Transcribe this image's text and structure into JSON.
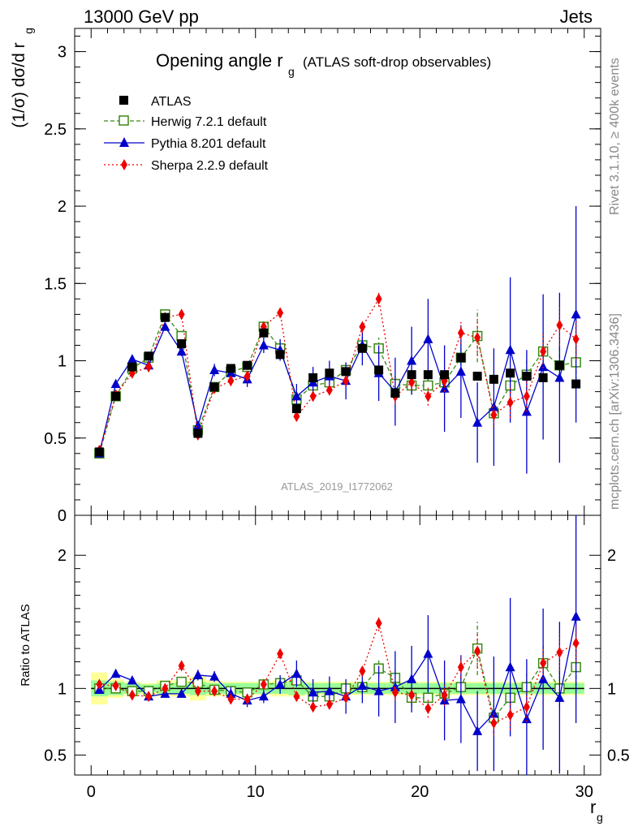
{
  "header": {
    "process": "13000 GeV pp",
    "category": "Jets"
  },
  "title": {
    "main": "Opening angle r",
    "main_sub": "g",
    "suffix": "(ATLAS soft-drop observables)"
  },
  "side_labels": {
    "rivet": "Rivet 3.1.10, ≥ 400k events",
    "mcplots": "mcplots.cern.ch [arXiv:1306.3436]"
  },
  "analysis_id": "ATLAS_2019_I1772062",
  "legend": {
    "atlas": "ATLAS",
    "herwig": "Herwig 7.2.1 default",
    "pythia": "Pythia 8.201 default",
    "sherpa": "Sherpa 2.2.9 default"
  },
  "colors": {
    "atlas": "#000000",
    "herwig": "#3a8a14",
    "pythia": "#0000cc",
    "sherpa": "#ee0000",
    "band_inner": "#99ff99",
    "band_outer": "#ffff99"
  },
  "chart_data": [
    {
      "type": "scatter",
      "ylabel_main": "(1/σ) dσ/d r",
      "ylabel_sub": "g",
      "xlim": [
        -1,
        31
      ],
      "ylim": [
        0,
        3.15
      ],
      "y_ticks": [
        0,
        0.5,
        1,
        1.5,
        2,
        2.5,
        3
      ],
      "y_tick_labels": [
        "0",
        "0.5",
        "1",
        "1.5",
        "2",
        "2.5",
        "3"
      ],
      "x": [
        0.5,
        1.5,
        2.5,
        3.5,
        4.5,
        5.5,
        6.5,
        7.5,
        8.5,
        9.5,
        10.5,
        11.5,
        12.5,
        13.5,
        14.5,
        15.5,
        16.5,
        17.5,
        18.5,
        19.5,
        20.5,
        21.5,
        22.5,
        23.5,
        24.5,
        25.5,
        26.5,
        27.5,
        28.5,
        29.5
      ],
      "series": [
        {
          "name": "ATLAS",
          "key": "atlas",
          "marker": "square",
          "values": [
            0.41,
            0.77,
            0.96,
            1.03,
            1.28,
            1.11,
            0.53,
            0.83,
            0.95,
            0.97,
            1.18,
            1.04,
            0.69,
            0.89,
            0.92,
            0.93,
            1.08,
            0.94,
            0.79,
            0.91,
            0.91,
            0.91,
            1.02,
            0.9,
            0.88,
            0.92,
            0.9,
            0.89,
            0.97,
            0.85
          ]
        },
        {
          "name": "Herwig 7.2.1 default",
          "key": "herwig",
          "marker": "open-square",
          "dash": "5,3",
          "values": [
            0.4,
            0.77,
            0.95,
            1.02,
            1.3,
            1.16,
            0.55,
            0.83,
            0.93,
            0.96,
            1.22,
            1.08,
            0.75,
            0.84,
            0.86,
            0.94,
            1.1,
            1.08,
            0.85,
            0.84,
            0.84,
            0.86,
            1.02,
            1.16,
            0.66,
            0.84,
            0.91,
            1.06,
            0.97,
            0.99
          ],
          "errors": [
            0.01,
            0.01,
            0.01,
            0.01,
            0.02,
            0.02,
            0.01,
            0.01,
            0.02,
            0.02,
            0.02,
            0.03,
            0.03,
            0.03,
            0.04,
            0.04,
            0.05,
            0.07,
            0.06,
            0.06,
            0.06,
            0.07,
            0.09,
            0.17,
            0.1,
            0.1,
            0.1,
            0.12,
            0.12,
            0.12
          ]
        },
        {
          "name": "Pythia 8.201 default",
          "key": "pythia",
          "marker": "triangle",
          "values": [
            0.4,
            0.85,
            1.01,
            0.97,
            1.22,
            1.06,
            0.58,
            0.94,
            0.92,
            0.88,
            1.1,
            1.07,
            0.77,
            0.86,
            0.9,
            0.87,
            1.1,
            0.92,
            0.8,
            1.0,
            1.14,
            0.82,
            0.93,
            0.6,
            0.7,
            1.07,
            0.67,
            0.96,
            0.89,
            1.3
          ],
          "errors": [
            0.01,
            0.02,
            0.02,
            0.02,
            0.02,
            0.03,
            0.03,
            0.04,
            0.05,
            0.05,
            0.05,
            0.07,
            0.08,
            0.1,
            0.1,
            0.12,
            0.13,
            0.18,
            0.22,
            0.22,
            0.26,
            0.28,
            0.3,
            0.26,
            0.38,
            0.47,
            0.4,
            0.47,
            0.55,
            0.7
          ]
        },
        {
          "name": "Sherpa 2.2.9 default",
          "key": "sherpa",
          "marker": "diamond",
          "dash": "2,3",
          "values": [
            0.42,
            0.78,
            0.92,
            0.96,
            1.28,
            1.3,
            0.52,
            0.82,
            0.87,
            0.9,
            1.22,
            1.31,
            0.64,
            0.77,
            0.81,
            0.87,
            1.22,
            1.4,
            0.77,
            0.86,
            0.77,
            0.87,
            1.18,
            1.15,
            0.65,
            0.73,
            0.77,
            1.06,
            1.23,
            1.14
          ],
          "errors": [
            0.01,
            0.01,
            0.01,
            0.01,
            0.02,
            0.02,
            0.01,
            0.01,
            0.02,
            0.02,
            0.02,
            0.02,
            0.02,
            0.03,
            0.03,
            0.03,
            0.04,
            0.05,
            0.05,
            0.05,
            0.06,
            0.07,
            0.07,
            0.12,
            0.08,
            0.1,
            0.1,
            0.11,
            0.13,
            0.13
          ]
        }
      ]
    },
    {
      "type": "scatter",
      "ylabel": "Ratio to ATLAS",
      "xlabel_main": "r",
      "xlabel_sub": "g",
      "xlim": [
        -1,
        31
      ],
      "ylim": [
        0.35,
        2.3
      ],
      "y_ticks": [
        0.5,
        1,
        2
      ],
      "y_tick_labels": [
        "0.5",
        "1",
        "2"
      ],
      "x_ticks": [
        0,
        10,
        20,
        30
      ],
      "x_tick_labels": [
        "0",
        "10",
        "20",
        "30"
      ],
      "x": [
        0.5,
        1.5,
        2.5,
        3.5,
        4.5,
        5.5,
        6.5,
        7.5,
        8.5,
        9.5,
        10.5,
        11.5,
        12.5,
        13.5,
        14.5,
        15.5,
        16.5,
        17.5,
        18.5,
        19.5,
        20.5,
        21.5,
        22.5,
        23.5,
        24.5,
        25.5,
        26.5,
        27.5,
        28.5,
        29.5
      ],
      "band_inner": [
        0.06,
        0.05,
        0.04,
        0.03,
        0.04,
        0.04,
        0.05,
        0.04,
        0.04,
        0.04,
        0.04,
        0.04,
        0.05,
        0.04,
        0.04,
        0.04,
        0.04,
        0.04,
        0.04,
        0.04,
        0.04,
        0.04,
        0.04,
        0.04,
        0.04,
        0.04,
        0.04,
        0.04,
        0.04,
        0.04
      ],
      "band_outer": [
        0.12,
        0.07,
        0.05,
        0.04,
        0.06,
        0.06,
        0.09,
        0.06,
        0.05,
        0.05,
        0.05,
        0.06,
        0.06,
        0.05,
        0.05,
        0.05,
        0.05,
        0.05,
        0.05,
        0.05,
        0.05,
        0.05,
        0.05,
        0.05,
        0.05,
        0.05,
        0.05,
        0.05,
        0.05,
        0.05
      ],
      "series": [
        {
          "name": "Herwig 7.2.1 default",
          "key": "herwig",
          "marker": "open-square",
          "dash": "5,3",
          "values": [
            1.0,
            1.0,
            0.98,
            0.98,
            1.02,
            1.05,
            1.04,
            0.99,
            0.98,
            0.97,
            1.03,
            1.04,
            1.06,
            0.94,
            0.94,
            1.0,
            1.01,
            1.15,
            1.08,
            0.93,
            0.93,
            0.96,
            1.01,
            1.3,
            0.78,
            0.93,
            1.01,
            1.19,
            1.0,
            1.16
          ],
          "errors": [
            0.02,
            0.02,
            0.02,
            0.02,
            0.02,
            0.02,
            0.02,
            0.02,
            0.02,
            0.02,
            0.02,
            0.03,
            0.04,
            0.04,
            0.04,
            0.04,
            0.05,
            0.06,
            0.07,
            0.07,
            0.07,
            0.08,
            0.09,
            0.2,
            0.12,
            0.12,
            0.12,
            0.14,
            0.14,
            0.14
          ]
        },
        {
          "name": "Pythia 8.201 default",
          "key": "pythia",
          "marker": "triangle",
          "values": [
            0.99,
            1.11,
            1.06,
            0.94,
            0.96,
            0.96,
            1.1,
            1.09,
            0.96,
            0.91,
            0.94,
            1.03,
            1.11,
            0.97,
            0.98,
            0.94,
            1.02,
            0.98,
            1.01,
            1.07,
            1.26,
            0.91,
            0.92,
            0.68,
            0.81,
            1.16,
            0.77,
            1.07,
            0.93,
            1.54
          ],
          "errors": [
            0.02,
            0.03,
            0.02,
            0.02,
            0.02,
            0.03,
            0.04,
            0.04,
            0.05,
            0.05,
            0.05,
            0.07,
            0.1,
            0.1,
            0.11,
            0.13,
            0.13,
            0.19,
            0.27,
            0.25,
            0.29,
            0.3,
            0.33,
            0.3,
            0.43,
            0.52,
            0.45,
            0.53,
            0.57,
            0.8
          ]
        },
        {
          "name": "Sherpa 2.2.9 default",
          "key": "sherpa",
          "marker": "diamond",
          "dash": "2,3",
          "values": [
            1.03,
            1.02,
            0.95,
            0.94,
            1.0,
            1.17,
            0.98,
            0.98,
            0.92,
            0.92,
            1.03,
            1.26,
            0.94,
            0.86,
            0.88,
            0.93,
            1.13,
            1.49,
            0.97,
            0.95,
            0.85,
            0.95,
            1.16,
            1.28,
            0.74,
            0.8,
            0.86,
            1.19,
            1.27,
            1.34
          ],
          "errors": [
            0.02,
            0.02,
            0.02,
            0.02,
            0.02,
            0.02,
            0.02,
            0.02,
            0.02,
            0.02,
            0.02,
            0.02,
            0.03,
            0.03,
            0.03,
            0.03,
            0.04,
            0.06,
            0.06,
            0.06,
            0.07,
            0.08,
            0.08,
            0.13,
            0.09,
            0.11,
            0.11,
            0.12,
            0.14,
            0.14
          ]
        }
      ]
    }
  ]
}
